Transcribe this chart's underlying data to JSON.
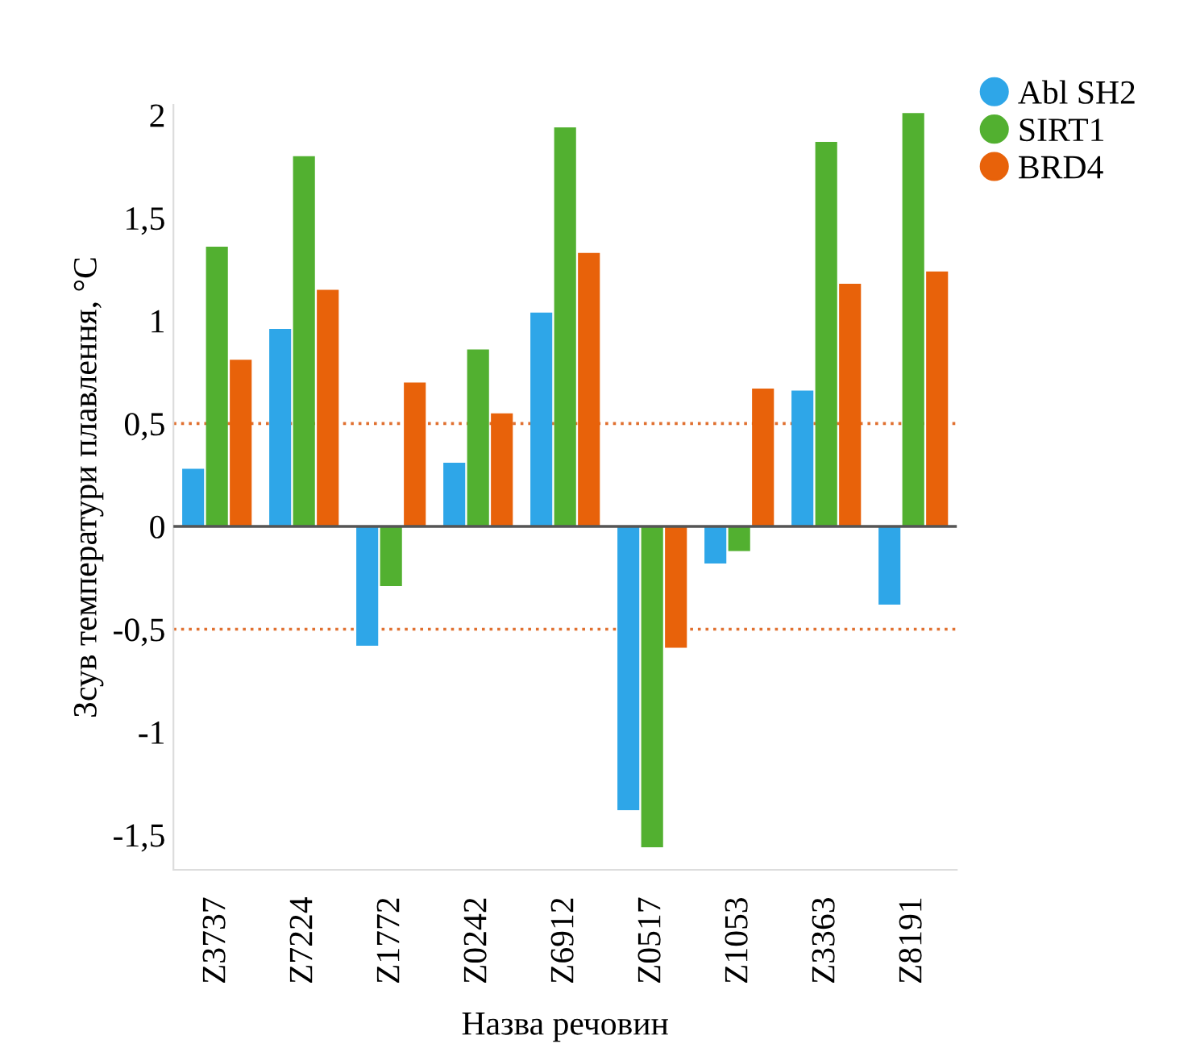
{
  "chart_data": {
    "type": "bar",
    "xlabel": "Назва речовин",
    "ylabel": "Зсув температури плавлення, °С",
    "categories": [
      "Z3737",
      "Z7224",
      "Z1772",
      "Z0242",
      "Z6912",
      "Z0517",
      "Z1053",
      "Z3363",
      "Z8191"
    ],
    "series": [
      {
        "name": "Abl SH2",
        "color": "#2ea6e8",
        "values": [
          0.28,
          0.96,
          -0.58,
          0.31,
          1.04,
          -1.38,
          -0.18,
          0.66,
          -0.38
        ]
      },
      {
        "name": "SIRT1",
        "color": "#52b030",
        "values": [
          1.36,
          1.8,
          -0.29,
          0.86,
          1.94,
          -1.56,
          -0.12,
          1.87,
          2.01
        ]
      },
      {
        "name": "BRD4",
        "color": "#e8620a",
        "values": [
          0.81,
          1.15,
          0.7,
          0.55,
          1.33,
          -0.59,
          0.67,
          1.18,
          1.24
        ]
      }
    ],
    "ylim": [
      -1.67,
      2.05
    ],
    "yticks": [
      {
        "value": -1.5,
        "label": "-1,5"
      },
      {
        "value": -1,
        "label": "-1"
      },
      {
        "value": -0.5,
        "label": "-0,5"
      },
      0,
      {
        "value": 0.5,
        "label": "0,5"
      },
      1,
      {
        "value": 1.5,
        "label": "1,5"
      },
      2
    ],
    "ref_lines": [
      {
        "axis": "y",
        "value": 0.5,
        "color": "#e07030",
        "line_style": "dotted"
      },
      {
        "axis": "y",
        "value": -0.5,
        "color": "#e07030",
        "line_style": "dotted"
      }
    ],
    "legend": "top right",
    "grid": false
  }
}
